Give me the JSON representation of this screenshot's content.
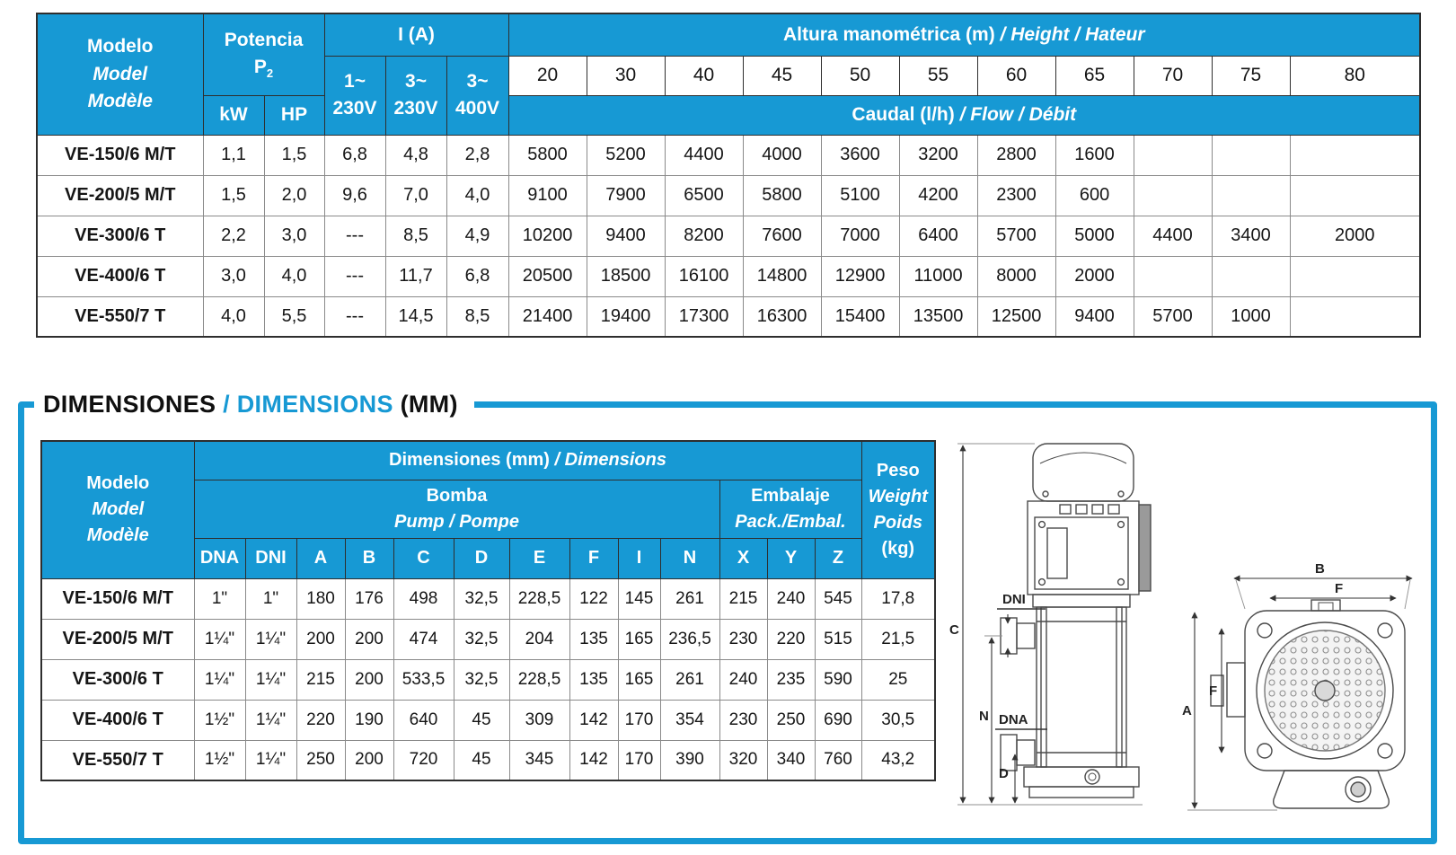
{
  "colors": {
    "accent_blue": "#1799d4",
    "header_text": "#ffffff",
    "model_text": "#1799d4",
    "grid_border": "#8a8a8a"
  },
  "performance_table": {
    "header": {
      "model": {
        "line1": "Modelo",
        "line2": "Model",
        "line3": "Modèle"
      },
      "power": {
        "title": "Potencia",
        "symbol": "P",
        "symbol_sub": "2",
        "units": [
          "kW",
          "HP"
        ]
      },
      "current": {
        "title": "I (A)",
        "cols": [
          {
            "l1": "1~",
            "l2": "230V"
          },
          {
            "l1": "3~",
            "l2": "230V"
          },
          {
            "l1": "3~",
            "l2": "400V"
          }
        ]
      },
      "head": {
        "title_bold": "Altura manométrica (m)",
        "title_italic": "/ Height / Hateur",
        "values": [
          "20",
          "30",
          "40",
          "45",
          "50",
          "55",
          "60",
          "65",
          "70",
          "75",
          "80"
        ]
      },
      "flow": {
        "title_bold": "Caudal (l/h)",
        "title_italic": "/ Flow / Débit"
      }
    },
    "rows": [
      {
        "model": "VE-150/6 M/T",
        "kw": "1,1",
        "hp": "1,5",
        "i1_230": "6,8",
        "i3_230": "4,8",
        "i3_400": "2,8",
        "flows": [
          "5800",
          "5200",
          "4400",
          "4000",
          "3600",
          "3200",
          "2800",
          "1600",
          "",
          "",
          ""
        ]
      },
      {
        "model": "VE-200/5 M/T",
        "kw": "1,5",
        "hp": "2,0",
        "i1_230": "9,6",
        "i3_230": "7,0",
        "i3_400": "4,0",
        "flows": [
          "9100",
          "7900",
          "6500",
          "5800",
          "5100",
          "4200",
          "2300",
          "600",
          "",
          "",
          ""
        ]
      },
      {
        "model": "VE-300/6 T",
        "kw": "2,2",
        "hp": "3,0",
        "i1_230": "---",
        "i3_230": "8,5",
        "i3_400": "4,9",
        "flows": [
          "10200",
          "9400",
          "8200",
          "7600",
          "7000",
          "6400",
          "5700",
          "5000",
          "4400",
          "3400",
          "2000"
        ]
      },
      {
        "model": "VE-400/6 T",
        "kw": "3,0",
        "hp": "4,0",
        "i1_230": "---",
        "i3_230": "11,7",
        "i3_400": "6,8",
        "flows": [
          "20500",
          "18500",
          "16100",
          "14800",
          "12900",
          "11000",
          "8000",
          "2000",
          "",
          "",
          ""
        ]
      },
      {
        "model": "VE-550/7 T",
        "kw": "4,0",
        "hp": "5,5",
        "i1_230": "---",
        "i3_230": "14,5",
        "i3_400": "8,5",
        "flows": [
          "21400",
          "19400",
          "17300",
          "16300",
          "15400",
          "13500",
          "12500",
          "9400",
          "5700",
          "1000",
          ""
        ]
      }
    ]
  },
  "dimensions_section": {
    "title": {
      "part1": "DIMENSIONES ",
      "sep": "/ ",
      "part2": "DIMENSIONS ",
      "part3": "(MM)"
    },
    "table": {
      "header": {
        "model": {
          "line1": "Modelo",
          "line2": "Model",
          "line3": "Modèle"
        },
        "dims_bold": "Dimensiones (mm)",
        "dims_italic": "/ Dimensions",
        "pump_bold": "Bomba",
        "pump_italic": "Pump / Pompe",
        "pack_bold": "Embalaje",
        "pack_italic": "Pack./Embal.",
        "weight": {
          "line1": "Peso",
          "line2": "Weight",
          "line3": "Poids",
          "line4": "(kg)"
        },
        "cols": [
          "DNA",
          "DNI",
          "A",
          "B",
          "C",
          "D",
          "E",
          "F",
          "I",
          "N",
          "X",
          "Y",
          "Z"
        ]
      },
      "rows": [
        {
          "model": "VE-150/6 M/T",
          "values": [
            "1\"",
            "1\"",
            "180",
            "176",
            "498",
            "32,5",
            "228,5",
            "122",
            "145",
            "261",
            "215",
            "240",
            "545",
            "17,8"
          ]
        },
        {
          "model": "VE-200/5 M/T",
          "values": [
            "1¼\"",
            "1¼\"",
            "200",
            "200",
            "474",
            "32,5",
            "204",
            "135",
            "165",
            "236,5",
            "230",
            "220",
            "515",
            "21,5"
          ]
        },
        {
          "model": "VE-300/6 T",
          "values": [
            "1¼\"",
            "1¼\"",
            "215",
            "200",
            "533,5",
            "32,5",
            "228,5",
            "135",
            "165",
            "261",
            "240",
            "235",
            "590",
            "25"
          ]
        },
        {
          "model": "VE-400/6 T",
          "values": [
            "1½\"",
            "1¼\"",
            "220",
            "190",
            "640",
            "45",
            "309",
            "142",
            "170",
            "354",
            "230",
            "250",
            "690",
            "30,5"
          ]
        },
        {
          "model": "VE-550/7 T",
          "values": [
            "1½\"",
            "1¼\"",
            "250",
            "200",
            "720",
            "45",
            "345",
            "142",
            "170",
            "390",
            "320",
            "340",
            "760",
            "43,2"
          ]
        }
      ]
    },
    "diagrams": {
      "side": {
        "c": "C",
        "n": "N",
        "d": "D",
        "dni": "DNI",
        "dna": "DNA"
      },
      "front": {
        "b": "B",
        "f_top": "F",
        "a": "A",
        "f_left": "F"
      }
    }
  }
}
